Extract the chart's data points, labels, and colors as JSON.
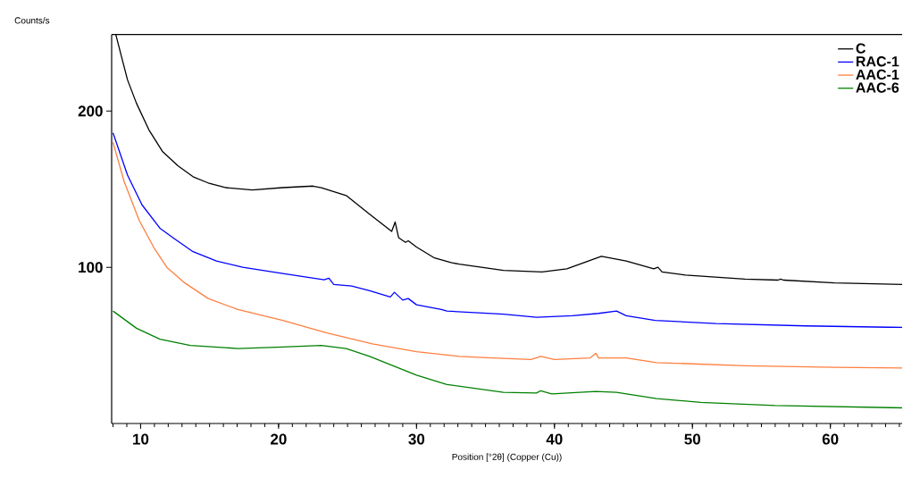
{
  "chart_data": {
    "type": "line",
    "ylabel": "Counts/s",
    "xlabel": "Position [°2θ] (Copper (Cu))",
    "xlim": [
      7.9,
      65.2
    ],
    "ylim": [
      0,
      249
    ],
    "xticks": [
      10,
      20,
      30,
      40,
      50,
      60
    ],
    "yticks": [
      100,
      200
    ],
    "grid": false,
    "legend": "top right",
    "marker": "none",
    "line_style": "solid",
    "series": [
      {
        "name": "C",
        "color": "#000000",
        "x": [
          8.2,
          9.05,
          9.7,
          10.6,
          11.6,
          12.7,
          13.8,
          14.9,
          16.2,
          18.1,
          20.3,
          22.5,
          23.1,
          24.9,
          26.6,
          28.2,
          28.45,
          28.7,
          29.2,
          29.4,
          30.0,
          31.3,
          32.5,
          33.1,
          36.3,
          39.1,
          40.9,
          43.4,
          45.2,
          47.2,
          47.5,
          47.8,
          49.5,
          53.8,
          56.2,
          56.4,
          56.6,
          60.3,
          65.2
        ],
        "values": [
          249,
          220,
          205,
          188,
          174,
          165,
          158,
          154,
          151,
          149.5,
          151,
          152,
          151,
          146,
          134,
          123,
          129,
          119,
          116,
          117,
          113,
          106,
          103,
          102,
          98,
          97,
          99,
          107,
          104,
          99,
          100,
          97,
          95,
          92.5,
          91.8,
          92.5,
          91.8,
          90,
          89
        ]
      },
      {
        "name": "RAC-1",
        "color": "#0000ff",
        "x": [
          8.0,
          9.05,
          10.1,
          11.4,
          12.5,
          13.8,
          15.5,
          17.4,
          20.3,
          23.3,
          23.65,
          24.0,
          25.3,
          26.6,
          28.1,
          28.4,
          29.0,
          29.4,
          30.0,
          31.8,
          32.2,
          36.3,
          38.7,
          41.3,
          43.2,
          44.5,
          45.2,
          47.3,
          51.7,
          58.2,
          65.2
        ],
        "values": [
          186,
          159,
          140,
          125,
          118,
          110,
          104,
          100,
          96,
          92,
          93,
          89,
          88,
          85,
          81,
          84,
          79,
          80,
          76,
          73,
          72,
          70,
          68,
          69,
          70.5,
          72,
          69,
          66,
          64,
          62.5,
          61.5
        ]
      },
      {
        "name": "AAC-1",
        "color": "#ff7f3f",
        "x": [
          8.0,
          8.8,
          9.9,
          11.0,
          11.9,
          13.2,
          14.9,
          17.05,
          20.3,
          23.5,
          26.8,
          30.0,
          33.1,
          35.5,
          38.3,
          39.0,
          40.0,
          42.6,
          43.0,
          43.2,
          45.2,
          47.4,
          53.8,
          60.3,
          65.2
        ],
        "values": [
          180,
          155,
          130,
          112,
          100,
          90,
          80,
          73,
          66,
          58,
          51,
          46,
          43,
          42,
          41,
          43,
          41,
          42,
          45,
          42,
          42,
          39,
          37,
          36,
          35.5
        ]
      },
      {
        "name": "AAC-6",
        "color": "#008000",
        "x": [
          8.0,
          9.7,
          11.4,
          13.6,
          17.05,
          20.3,
          23.1,
          24.9,
          26.6,
          28.3,
          30.0,
          32.2,
          36.3,
          38.7,
          39.0,
          39.8,
          43.0,
          44.5,
          47.4,
          50.6,
          56.0,
          65.2
        ],
        "values": [
          72,
          61,
          54,
          50,
          48,
          49,
          50,
          48,
          43,
          37,
          31,
          25,
          20,
          19.5,
          21,
          19,
          20.5,
          20,
          16,
          13.5,
          11.5,
          10
        ]
      }
    ]
  }
}
